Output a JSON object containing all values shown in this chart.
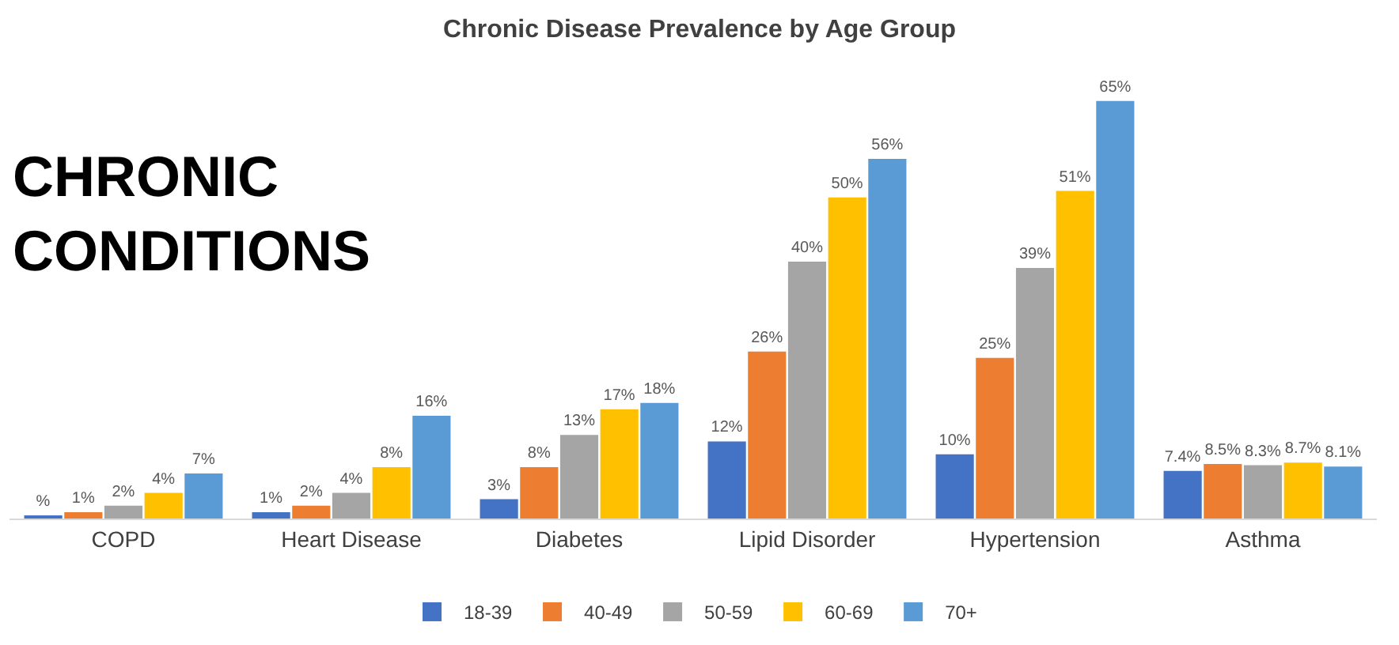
{
  "chart_data": {
    "type": "bar",
    "title": "Chronic Disease Prevalence by Age Group",
    "categories": [
      "COPD",
      "Heart Disease",
      "Diabetes",
      "Lipid Disorder",
      "Hypertension",
      "Asthma"
    ],
    "series": [
      {
        "name": "18-39",
        "color": "#4472c4",
        "values": [
          0.5,
          1,
          3,
          12,
          10,
          7.4
        ],
        "value_labels": [
          "%",
          "1%",
          "3%",
          "12%",
          "10%",
          "7.4%"
        ]
      },
      {
        "name": "40-49",
        "color": "#ed7d31",
        "values": [
          1,
          2,
          8,
          26,
          25,
          8.5
        ],
        "value_labels": [
          "1%",
          "2%",
          "8%",
          "26%",
          "25%",
          "8.5%"
        ]
      },
      {
        "name": "50-59",
        "color": "#a5a5a5",
        "values": [
          2,
          4,
          13,
          40,
          39,
          8.3
        ],
        "value_labels": [
          "2%",
          "4%",
          "13%",
          "40%",
          "39%",
          "8.3%"
        ]
      },
      {
        "name": "60-69",
        "color": "#ffc000",
        "values": [
          4,
          8,
          17,
          50,
          51,
          8.7
        ],
        "value_labels": [
          "4%",
          "8%",
          "17%",
          "50%",
          "51%",
          "8.7%"
        ]
      },
      {
        "name": "70+",
        "color": "#5b9bd5",
        "values": [
          7,
          16,
          18,
          56,
          65,
          8.1
        ],
        "value_labels": [
          "7%",
          "16%",
          "18%",
          "56%",
          "65%",
          "8.1%"
        ]
      }
    ],
    "annotations": [
      "CHRONIC CONDITIONS"
    ],
    "legend": "bottom"
  }
}
